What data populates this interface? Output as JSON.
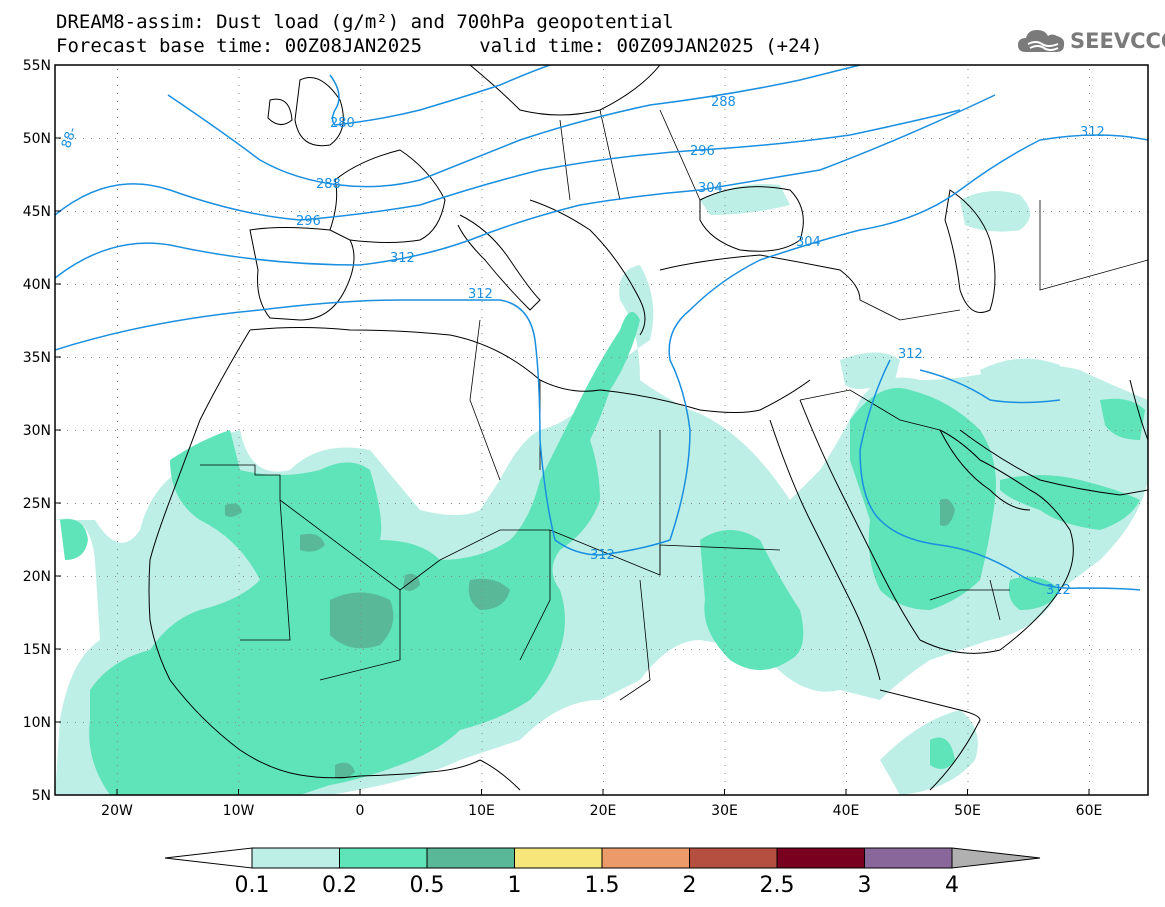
{
  "header": {
    "title_line1": "DREAM8-assim: Dust load (g/m²) and 700hPa geopotential",
    "title_line2": "Forecast base time: 00Z08JAN2025     valid time: 00Z09JAN2025 (+24)"
  },
  "logo": {
    "text": "SEEVCCC",
    "icon": "cloud-logo-icon"
  },
  "map": {
    "lat_labels": [
      "55N",
      "50N",
      "45N",
      "40N",
      "35N",
      "30N",
      "25N",
      "20N",
      "15N",
      "10N",
      "5N"
    ],
    "lon_labels": [
      "20W",
      "10W",
      "0",
      "10E",
      "20E",
      "30E",
      "40E",
      "50E",
      "60E"
    ],
    "contours": [
      {
        "value": "280",
        "label": "280"
      },
      {
        "value": "288",
        "label": "288"
      },
      {
        "value": "296",
        "label": "296"
      },
      {
        "value": "304",
        "label": "304"
      },
      {
        "value": "312",
        "label": "312"
      }
    ],
    "contour_labels": [
      "288",
      "296",
      "304",
      "312",
      "280",
      "288",
      "296",
      "304",
      "312",
      "312",
      "312",
      "312",
      "88-"
    ]
  },
  "colorbar": {
    "levels": [
      "0.1",
      "0.2",
      "0.5",
      "1",
      "1.5",
      "2",
      "2.5",
      "3",
      "4"
    ],
    "colors": [
      "#ffffff",
      "#bdefe6",
      "#5fe3b8",
      "#58b898",
      "#f7e77a",
      "#ec9a6a",
      "#b55040",
      "#7a0020",
      "#8a679a",
      "#b0b0b0"
    ]
  }
}
